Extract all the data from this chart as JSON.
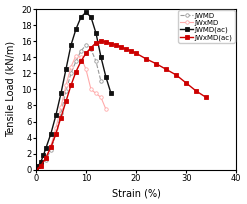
{
  "xlabel": "Strain (%)",
  "ylabel": "Tensile Load (kN/m)",
  "xlim": [
    0,
    40
  ],
  "ylim": [
    0,
    20
  ],
  "xticks": [
    0,
    10,
    20,
    30,
    40
  ],
  "yticks": [
    0,
    2,
    4,
    6,
    8,
    10,
    12,
    14,
    16,
    18,
    20
  ],
  "series": {
    "JWMD": {
      "color": "#999999",
      "marker": "o",
      "markerfacecolor": "white",
      "markeredgecolor": "#999999",
      "linestyle": "--",
      "markersize": 2.5,
      "linewidth": 0.8,
      "x": [
        0,
        1,
        2,
        3,
        4,
        5,
        6,
        7,
        8,
        9,
        10,
        11,
        12,
        13
      ],
      "y": [
        0,
        0.5,
        1.2,
        2.5,
        4.5,
        7.0,
        9.8,
        12.0,
        13.5,
        14.8,
        15.5,
        15.0,
        13.5,
        11.0
      ]
    },
    "JWxMD": {
      "color": "#ffaaaa",
      "marker": "o",
      "markerfacecolor": "white",
      "markeredgecolor": "#ffaaaa",
      "linestyle": "-",
      "markersize": 2.5,
      "linewidth": 0.8,
      "x": [
        0,
        1,
        2,
        3,
        4,
        5,
        6,
        7,
        8,
        9,
        10,
        11,
        12,
        13,
        14
      ],
      "y": [
        0,
        0.6,
        1.5,
        3.0,
        5.2,
        7.8,
        10.5,
        12.8,
        14.2,
        14.0,
        12.5,
        10.0,
        9.5,
        9.0,
        7.5
      ]
    },
    "JWMD(ac)": {
      "color": "#111111",
      "marker": "s",
      "markerfacecolor": "#111111",
      "markeredgecolor": "#111111",
      "linestyle": "-",
      "markersize": 3.5,
      "linewidth": 1.0,
      "x": [
        0,
        0.5,
        1,
        1.5,
        2,
        3,
        4,
        5,
        6,
        7,
        8,
        9,
        10,
        11,
        12,
        13,
        14,
        15
      ],
      "y": [
        0,
        0.5,
        1.0,
        1.8,
        2.7,
        4.5,
        6.8,
        9.5,
        12.5,
        15.5,
        17.5,
        19.0,
        19.6,
        19.0,
        17.0,
        14.0,
        11.5,
        9.5
      ]
    },
    "JWxMD(ac)": {
      "color": "#cc0000",
      "marker": "s",
      "markerfacecolor": "#cc0000",
      "markeredgecolor": "#cc0000",
      "linestyle": "-",
      "markersize": 3.5,
      "linewidth": 1.0,
      "x": [
        0,
        1,
        2,
        3,
        4,
        5,
        6,
        7,
        8,
        9,
        10,
        11,
        12,
        13,
        14,
        15,
        16,
        17,
        18,
        19,
        20,
        22,
        24,
        26,
        28,
        30,
        32,
        34
      ],
      "y": [
        0,
        0.5,
        1.5,
        2.8,
        4.5,
        6.5,
        8.5,
        10.5,
        12.2,
        13.5,
        14.5,
        15.2,
        15.8,
        16.0,
        15.9,
        15.7,
        15.5,
        15.3,
        15.0,
        14.8,
        14.5,
        13.8,
        13.2,
        12.5,
        11.8,
        10.8,
        9.8,
        9.0
      ]
    }
  },
  "legend_fontsize": 5.0,
  "tick_fontsize": 6,
  "label_fontsize": 7
}
